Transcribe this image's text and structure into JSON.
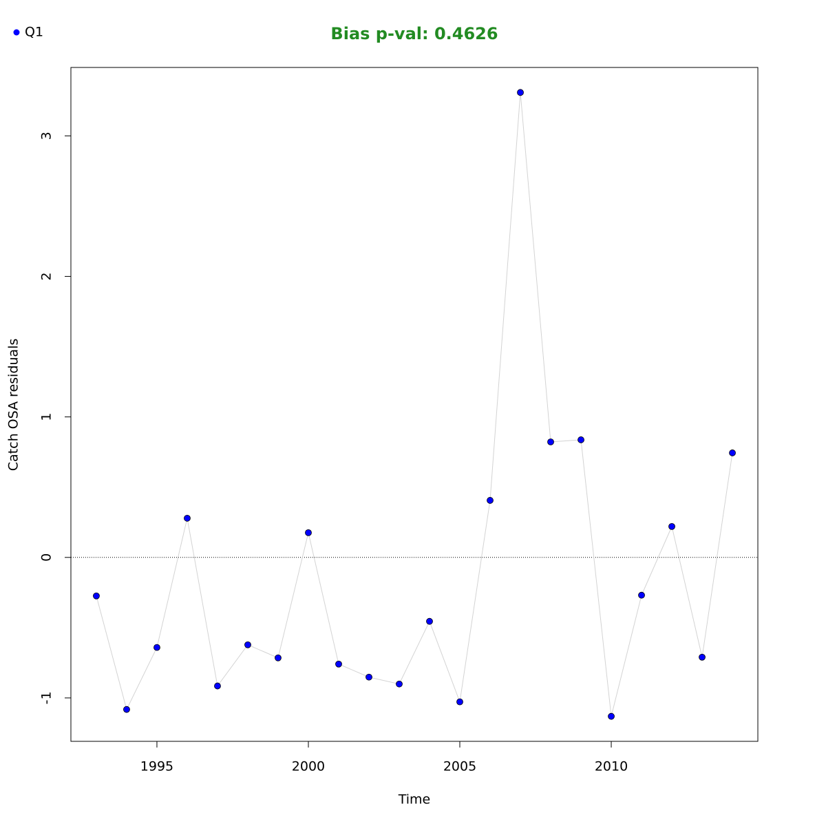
{
  "chart_data": {
    "type": "line",
    "title": "Bias p-val: 0.4626",
    "title_color": "#228b22",
    "xlabel": "Time",
    "ylabel": "Catch OSA residuals",
    "x": [
      1993,
      1994,
      1995,
      1996,
      1997,
      1998,
      1999,
      2000,
      2001,
      2002,
      2003,
      2004,
      2005,
      2006,
      2007,
      2008,
      2009,
      2010,
      2011,
      2012,
      2013,
      2014
    ],
    "series": [
      {
        "name": "Q1",
        "color": "#0000ff",
        "line_color": "#d3d3d3",
        "values": [
          -0.274,
          -1.082,
          -0.641,
          0.279,
          -0.915,
          -0.622,
          -0.715,
          0.176,
          -0.759,
          -0.852,
          -0.901,
          -0.455,
          -1.028,
          0.406,
          3.309,
          0.822,
          0.837,
          -1.131,
          -0.269,
          0.22,
          -0.71,
          0.744
        ]
      }
    ],
    "xlim": [
      1992.16,
      2014.84
    ],
    "ylim": [
      -1.309,
      3.487
    ],
    "xticks": [
      1995,
      2000,
      2005,
      2010
    ],
    "yticks": [
      -1,
      0,
      1,
      2,
      3
    ],
    "reference_line": 0,
    "legend": "top-left"
  }
}
